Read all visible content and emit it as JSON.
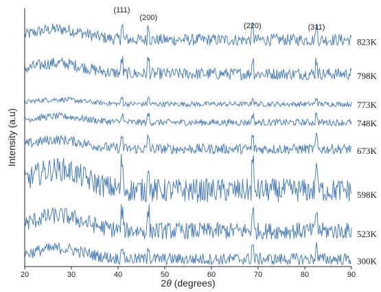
{
  "chart_data": {
    "type": "line",
    "xlabel": "2θ (degrees)",
    "xlabel_parts": {
      "prefix": "2",
      "theta": "θ",
      "suffix": " (degrees)"
    },
    "ylabel": "Intensity (a.u)",
    "xlim": [
      20,
      90
    ],
    "x_ticks": [
      20,
      30,
      40,
      50,
      60,
      70,
      80,
      90
    ],
    "grid": false,
    "line_color": "#4a7ebb",
    "peak_labels": [
      {
        "label": "(111)",
        "x": 40.8
      },
      {
        "label": "(200)",
        "x": 46.5
      },
      {
        "label": "(220)",
        "x": 68.8
      },
      {
        "label": "(311)",
        "x": 82.5
      }
    ],
    "series": [
      {
        "name": "823K",
        "baseline": 6.6,
        "noise": 0.35
      },
      {
        "name": "798K",
        "baseline": 5.6,
        "noise": 0.35
      },
      {
        "name": "773K",
        "baseline": 4.75,
        "noise": 0.15
      },
      {
        "name": "748K",
        "baseline": 4.2,
        "noise": 0.2
      },
      {
        "name": "673K",
        "baseline": 3.4,
        "noise": 0.3
      },
      {
        "name": "598K",
        "baseline": 2.1,
        "noise": 0.7
      },
      {
        "name": "523K",
        "baseline": 0.95,
        "noise": 0.5
      },
      {
        "name": "300K",
        "baseline": 0.15,
        "noise": 0.35
      }
    ],
    "ylim": [
      0,
      7.6
    ]
  }
}
